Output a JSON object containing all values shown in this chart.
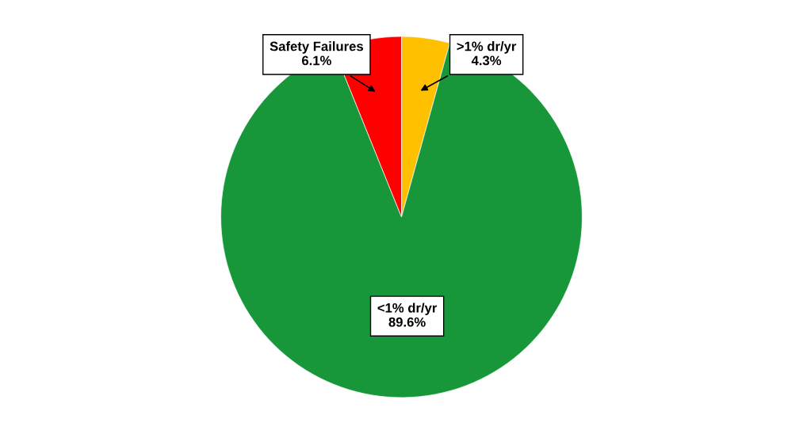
{
  "chart_data": {
    "type": "pie",
    "categories": [
      ">1% dr/yr",
      "<1% dr/yr",
      "Safety Failures"
    ],
    "values": [
      4.3,
      89.6,
      6.1
    ],
    "value_labels": [
      "4.3%",
      "89.6%",
      "6.1%"
    ],
    "colors": [
      "#ffc000",
      "#17973a",
      "#ff0000"
    ]
  }
}
